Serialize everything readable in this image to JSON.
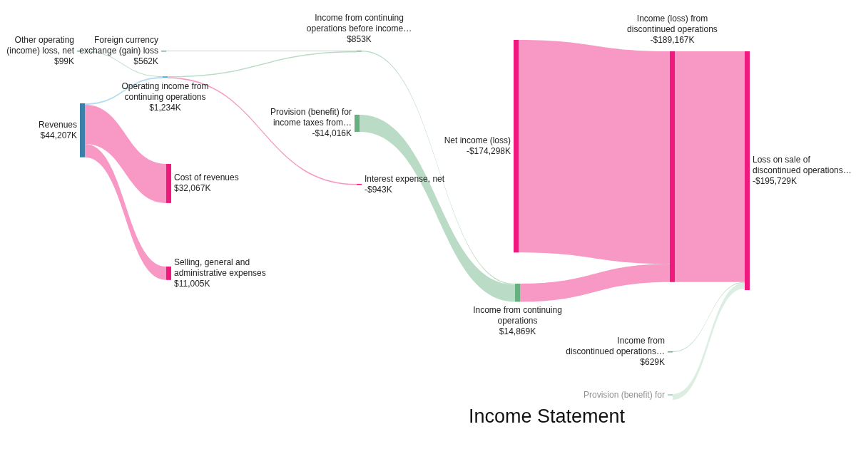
{
  "chart_data": {
    "type": "other",
    "title": "Income Statement",
    "categories": [
      "Other operating\n(income) loss, net",
      "Foreign currency\nexchange (gain) loss",
      "Revenues",
      "Operating income from\ncontinuing operations",
      "Cost of revenues",
      "Selling, general and\nadministrative expenses",
      "Income from continuing\noperations before income…",
      "Provision (benefit) for\nincome taxes from…",
      "Interest expense, net",
      "Income from continuing\noperations",
      "Net income (loss)",
      "Income (loss) from\ndiscontinued operations",
      "Loss on sale of\ndiscontinued operations…",
      "Income from\ndiscontinued operations…",
      "Provision (benefit) for"
    ],
    "values": [
      99,
      562,
      44207,
      1234,
      32067,
      11005,
      853,
      -14016,
      -943,
      14869,
      -174298,
      -189167,
      -195729,
      629,
      null
    ],
    "value_labels": [
      "$99K",
      "$562K",
      "$44,207K",
      "$1,234K",
      "$32,067K",
      "$11,005K",
      "$853K",
      "-$14,016K",
      "-$943K",
      "$14,869K",
      "-$174,298K",
      "-$189,167K",
      "-$195,729K",
      "$629K",
      null
    ],
    "colors": [
      "#66b07f",
      "#66b07f",
      "#3a80a8",
      "#5ab4e0",
      "#f0197d",
      "#f0197d",
      "#66b07f",
      "#66b07f",
      "#f0197d",
      "#66b07f",
      "#f0197d",
      "#f0197d",
      "#f0197d",
      "#66b07f",
      "#66b07f"
    ],
    "data_labels": true
  }
}
